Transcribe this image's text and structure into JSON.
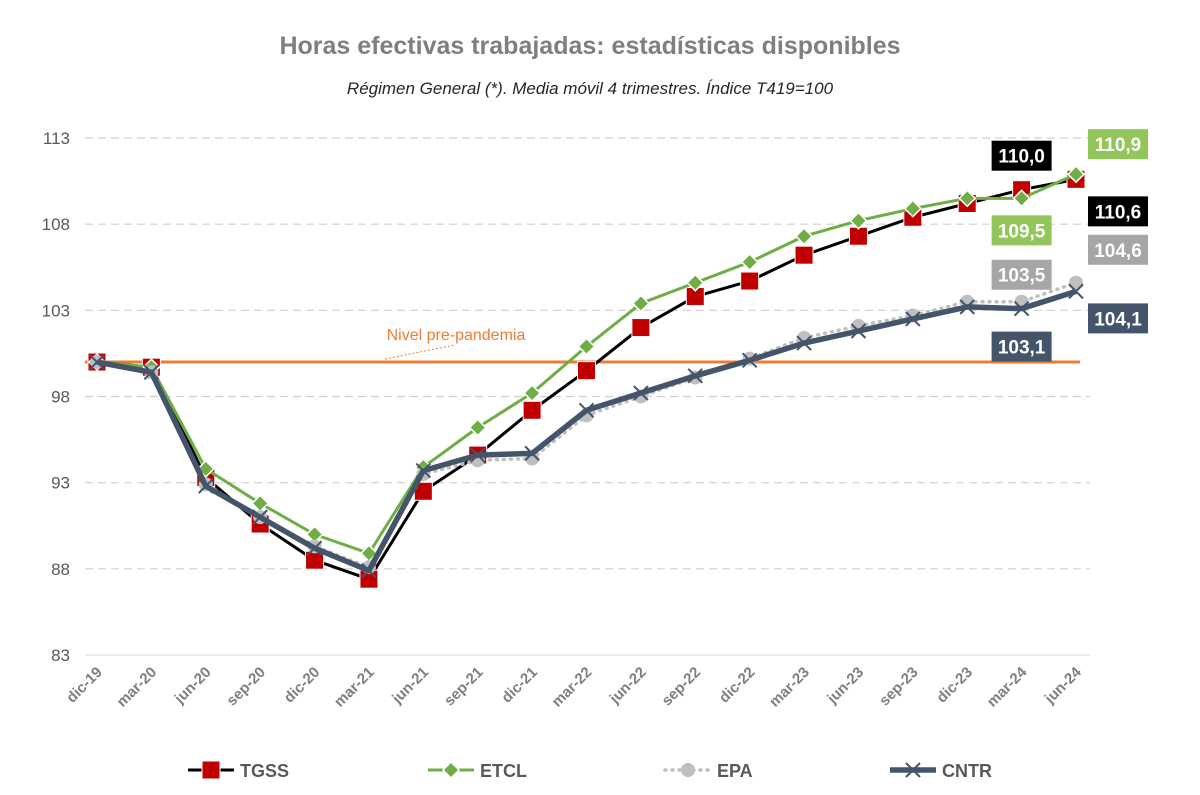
{
  "chart_data": {
    "type": "line",
    "title": "Horas efectivas trabajadas: estadísticas disponibles",
    "subtitle": "Régimen General (*). Media móvil 4 trimestres. Índice T419=100",
    "xlabel": "",
    "ylabel": "",
    "ylim": [
      83,
      113
    ],
    "yticks": [
      "83",
      "88",
      "93",
      "98",
      "103",
      "108",
      "113"
    ],
    "grid": "horizontal dashed",
    "legend_position": "bottom",
    "categories": [
      "dic-19",
      "mar-20",
      "jun-20",
      "sep-20",
      "dic-20",
      "mar-21",
      "jun-21",
      "sep-21",
      "dic-21",
      "mar-22",
      "jun-22",
      "sep-22",
      "dic-22",
      "mar-23",
      "jun-23",
      "sep-23",
      "dic-23",
      "mar-24",
      "jun-24"
    ],
    "reference_line": {
      "value": 100,
      "label": "Nivel pre-pandemia",
      "color": "#ED7D31"
    },
    "series": [
      {
        "name": "TGSS",
        "color": "#000000",
        "marker_color": "#C00000",
        "marker": "square",
        "label_bg": "#000000",
        "values": [
          100.0,
          99.7,
          93.3,
          90.6,
          88.5,
          87.4,
          92.5,
          94.6,
          97.2,
          99.5,
          102.0,
          103.8,
          104.7,
          106.2,
          107.3,
          108.4,
          109.2,
          110.0,
          110.6
        ],
        "data_labels": [
          {
            "index": 17,
            "text": "110,0"
          },
          {
            "index": 18,
            "text": "110,6"
          }
        ]
      },
      {
        "name": "ETCL",
        "color": "#70AD47",
        "marker_color": "#70AD47",
        "marker": "diamond",
        "label_bg": "#92C55A",
        "values": [
          100.0,
          99.7,
          93.8,
          91.8,
          90.0,
          88.9,
          93.9,
          96.2,
          98.2,
          100.9,
          103.4,
          104.6,
          105.8,
          107.3,
          108.2,
          108.9,
          109.5,
          109.5,
          110.9
        ],
        "data_labels": [
          {
            "index": 17,
            "text": "109,5"
          },
          {
            "index": 18,
            "text": "110,9"
          }
        ]
      },
      {
        "name": "EPA",
        "color": "#BFBFBF",
        "marker_color": "#BFBFBF",
        "marker": "circle",
        "label_bg": "#A6A6A6",
        "values": [
          100.0,
          99.4,
          92.9,
          91.0,
          89.3,
          88.1,
          93.5,
          94.3,
          94.4,
          96.9,
          98.0,
          99.1,
          100.2,
          101.4,
          102.1,
          102.7,
          103.5,
          103.5,
          104.6
        ],
        "data_labels": [
          {
            "index": 17,
            "text": "103,5"
          },
          {
            "index": 18,
            "text": "104,6"
          }
        ]
      },
      {
        "name": "CNTR",
        "color": "#44546A",
        "marker_color": "#44546A",
        "marker": "x",
        "label_bg": "#44546A",
        "values": [
          100.0,
          99.4,
          92.8,
          91.0,
          89.2,
          87.9,
          93.7,
          94.6,
          94.7,
          97.2,
          98.2,
          99.2,
          100.1,
          101.1,
          101.8,
          102.5,
          103.2,
          103.1,
          104.1
        ],
        "data_labels": [
          {
            "index": 17,
            "text": "103,1"
          },
          {
            "index": 18,
            "text": "104,1"
          }
        ]
      }
    ]
  }
}
